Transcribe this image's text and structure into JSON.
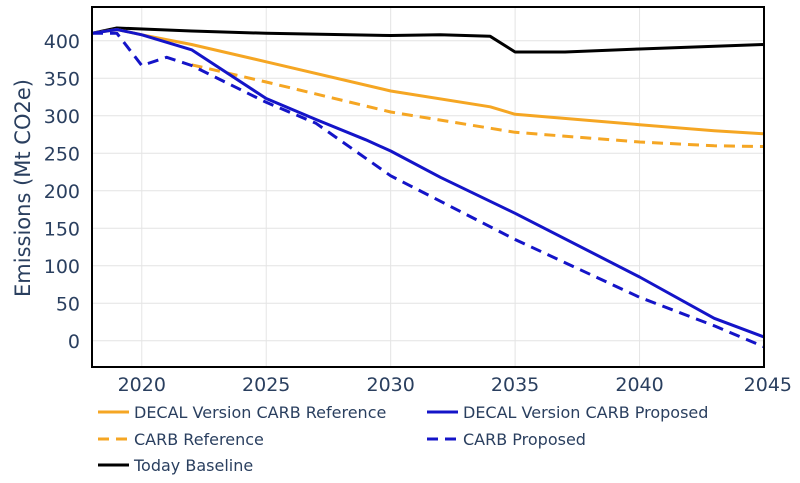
{
  "chart_data": {
    "type": "line",
    "title": "",
    "xlabel": "",
    "ylabel": "Emissions (Mt CO2e)",
    "xlim": [
      2018,
      2045
    ],
    "ylim": [
      -35,
      445
    ],
    "grid": true,
    "legend_position": "bottom",
    "x_ticks": [
      2020,
      2025,
      2030,
      2035,
      2040,
      2045
    ],
    "x_tick_labels": [
      "2020",
      "2025",
      "2030",
      "2035",
      "2040",
      "2045"
    ],
    "y_ticks": [
      0,
      50,
      100,
      150,
      200,
      250,
      300,
      350,
      400
    ],
    "y_tick_labels": [
      "0",
      "50",
      "100",
      "150",
      "200",
      "250",
      "300",
      "350",
      "400"
    ],
    "series": [
      {
        "name": "DECAL Version CARB Reference",
        "color": "#f5a623",
        "dash": "solid",
        "x": [
          2018,
          2019,
          2020,
          2022,
          2025,
          2030,
          2034,
          2035,
          2040,
          2043,
          2045
        ],
        "y": [
          410,
          415,
          408,
          395,
          372,
          333,
          312,
          302,
          288,
          280,
          276
        ]
      },
      {
        "name": "DECAL Version CARB Proposed",
        "color": "#1414c8",
        "dash": "solid",
        "x": [
          2018,
          2019,
          2020,
          2022,
          2025,
          2027,
          2029,
          2030,
          2032,
          2035,
          2040,
          2043,
          2045
        ],
        "y": [
          410,
          415,
          408,
          388,
          323,
          295,
          268,
          253,
          218,
          170,
          85,
          30,
          5
        ]
      },
      {
        "name": "CARB Reference",
        "color": "#f5a623",
        "dash": "dash",
        "x": [
          2022,
          2025,
          2030,
          2035,
          2040,
          2043,
          2045
        ],
        "y": [
          368,
          345,
          305,
          278,
          265,
          260,
          259
        ]
      },
      {
        "name": "CARB Proposed",
        "color": "#1414c8",
        "dash": "dash",
        "x": [
          2018,
          2019,
          2020,
          2021,
          2022,
          2025,
          2027,
          2030,
          2035,
          2040,
          2043,
          2045
        ],
        "y": [
          410,
          410,
          367,
          378,
          367,
          318,
          290,
          220,
          135,
          58,
          20,
          -8
        ]
      },
      {
        "name": "Today Baseline",
        "color": "#000000",
        "dash": "solid",
        "x": [
          2018,
          2019,
          2022,
          2025,
          2030,
          2032,
          2034,
          2035,
          2037,
          2040,
          2045
        ],
        "y": [
          410,
          417,
          413,
          410,
          407,
          408,
          406,
          385,
          385,
          389,
          395
        ]
      }
    ],
    "legend_rows": [
      [
        "DECAL Version CARB Reference",
        "DECAL Version CARB Proposed"
      ],
      [
        "CARB Reference",
        "CARB Proposed"
      ],
      [
        "Today Baseline"
      ]
    ]
  }
}
